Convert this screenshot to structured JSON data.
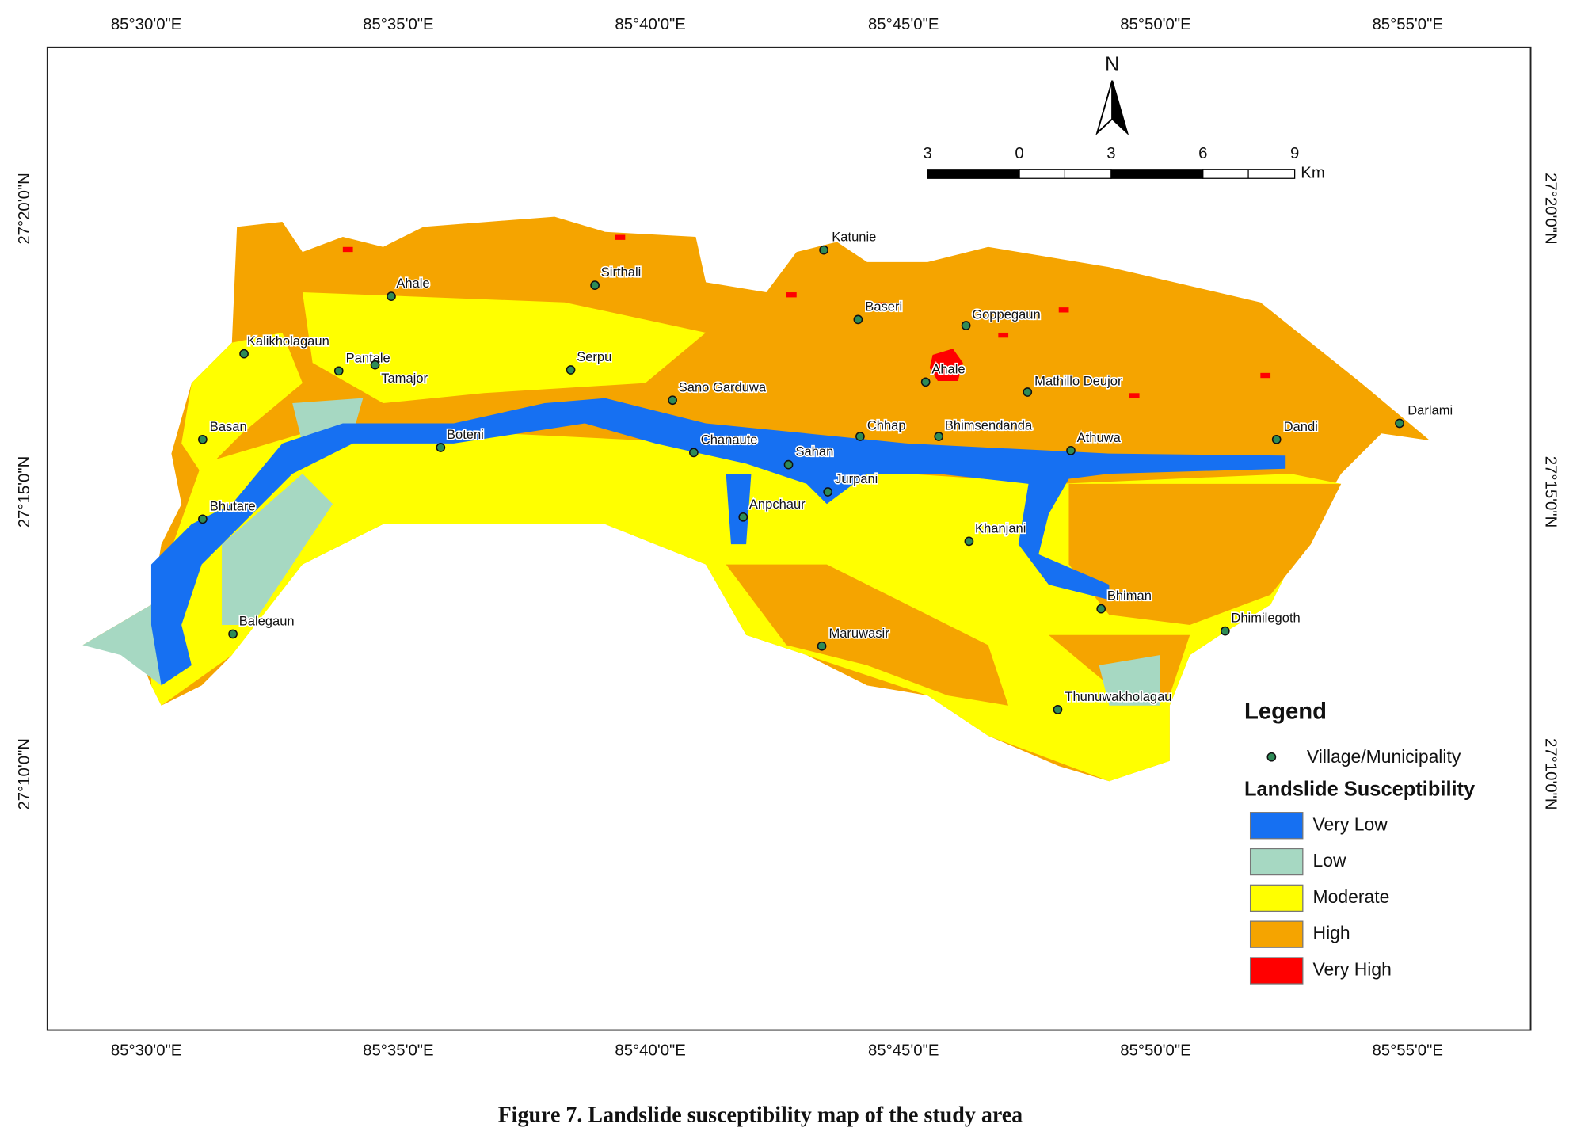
{
  "map": {
    "longitude_labels": [
      "85°30'0\"E",
      "85°35'0\"E",
      "85°40'0\"E",
      "85°45'0\"E",
      "85°50'0\"E",
      "85°55'0\"E"
    ],
    "latitude_labels": [
      "27°20'0\"N",
      "27°15'0\"N",
      "27°10'0\"N"
    ],
    "north": "N",
    "scale_bar": {
      "labels": [
        3,
        0,
        3,
        6,
        9
      ],
      "unit": "Km"
    },
    "villages": [
      "Katunie",
      "Sirthali",
      "Ahale",
      "Baseri",
      "Goppegaun",
      "Kalikholagaun",
      "Pantale",
      "Tamajor",
      "Serpu",
      "Ahale",
      "Mathillo Deujor",
      "Sano Garduwa",
      "Darlami",
      "Basan",
      "Boteni",
      "Chhap",
      "Bhimsendanda",
      "Dandi",
      "Athuwa",
      "Chanaute",
      "Sahan",
      "Jurpani",
      "Bhutare",
      "Anpchaur",
      "Khanjani",
      "Bhiman",
      "Dhimilegoth",
      "Balegaun",
      "Maruwasir",
      "Thunuwakholagau"
    ],
    "legend": {
      "title": "Legend",
      "point_label": "Village/Municipality",
      "class_title": "Landslide Susceptibility",
      "classes": [
        {
          "name": "Very Low",
          "color": "#1670f2"
        },
        {
          "name": "Low",
          "color": "#a6d8c2"
        },
        {
          "name": "Moderate",
          "color": "#ffff00"
        },
        {
          "name": "High",
          "color": "#f5a400"
        },
        {
          "name": "Very High",
          "color": "#ff0000"
        }
      ]
    }
  },
  "caption": "Figure 7. Landslide susceptibility map of the study area"
}
